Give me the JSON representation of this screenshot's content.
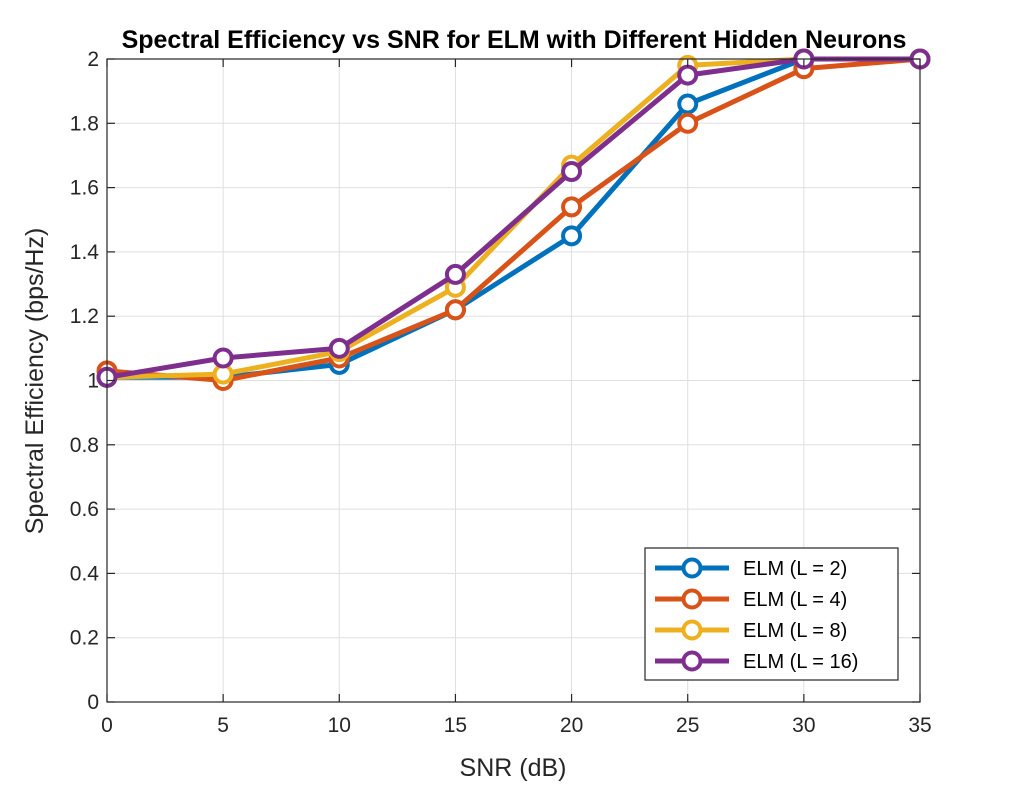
{
  "chart_data": {
    "type": "line",
    "title": "Spectral Efficiency vs SNR for ELM with Different Hidden Neurons",
    "xlabel": "SNR (dB)",
    "ylabel": "Spectral Efficiency (bps/Hz)",
    "xlim": [
      0,
      35
    ],
    "ylim": [
      0,
      2
    ],
    "xticks": [
      0,
      5,
      10,
      15,
      20,
      25,
      30,
      35
    ],
    "yticks": [
      0,
      0.2,
      0.4,
      0.6,
      0.8,
      1,
      1.2,
      1.4,
      1.6,
      1.8,
      2
    ],
    "xtick_labels": [
      "0",
      "5",
      "10",
      "15",
      "20",
      "25",
      "30",
      "35"
    ],
    "ytick_labels": [
      "0",
      "0.2",
      "0.4",
      "0.6",
      "0.8",
      "1",
      "1.2",
      "1.4",
      "1.6",
      "1.8",
      "2"
    ],
    "grid": true,
    "legend_position": "bottom-right",
    "series": [
      {
        "name": "ELM (L = 2)",
        "color": "#0072BD",
        "x": [
          0,
          5,
          10,
          15,
          20,
          25,
          30,
          35
        ],
        "y": [
          1.01,
          1.01,
          1.05,
          1.22,
          1.45,
          1.86,
          2.0,
          2.0
        ]
      },
      {
        "name": "ELM (L = 4)",
        "color": "#D95319",
        "x": [
          0,
          5,
          10,
          15,
          20,
          25,
          30,
          35
        ],
        "y": [
          1.03,
          1.0,
          1.07,
          1.22,
          1.54,
          1.8,
          1.97,
          2.0
        ]
      },
      {
        "name": "ELM (L = 8)",
        "color": "#EDB120",
        "x": [
          0,
          5,
          10,
          15,
          20,
          25,
          30,
          35
        ],
        "y": [
          1.01,
          1.02,
          1.09,
          1.29,
          1.67,
          1.98,
          2.0,
          2.0
        ]
      },
      {
        "name": "ELM (L = 16)",
        "color": "#7E2F8E",
        "x": [
          0,
          5,
          10,
          15,
          20,
          25,
          30,
          35
        ],
        "y": [
          1.01,
          1.07,
          1.1,
          1.33,
          1.65,
          1.95,
          2.0,
          2.0
        ]
      }
    ]
  }
}
